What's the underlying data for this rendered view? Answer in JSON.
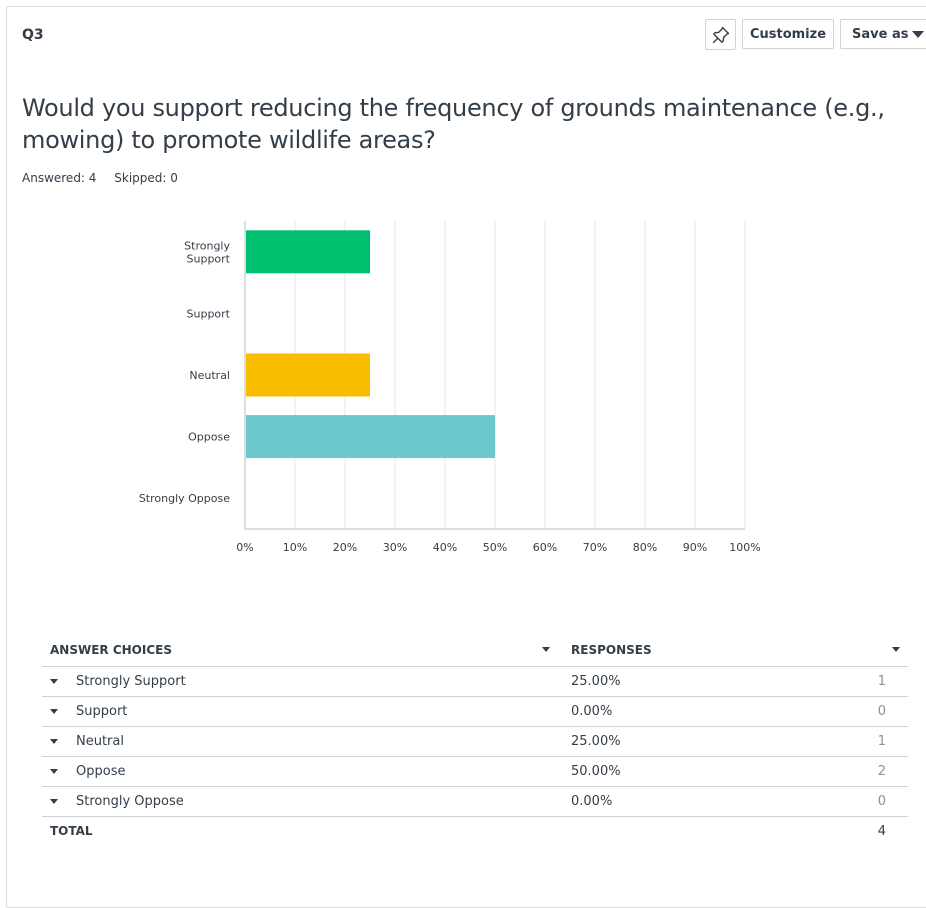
{
  "question": {
    "number": "Q3",
    "title": "Would you support reducing the frequency of grounds maintenance (e.g., mowing) to promote wildlife areas?",
    "answered_label": "Answered: 4",
    "skipped_label": "Skipped: 0"
  },
  "toolbar": {
    "pin_icon": "pin-icon",
    "customize_label": "Customize",
    "save_as_label": "Save as"
  },
  "colors": {
    "strongly_support": "#00bf6f",
    "neutral": "#f9be00",
    "oppose": "#6bc8cd",
    "grid": "#e6e8e9",
    "axis": "#b8bcbf"
  },
  "chart_data": {
    "type": "bar",
    "orientation": "horizontal",
    "categories": [
      "Strongly Support",
      "Support",
      "Neutral",
      "Oppose",
      "Strongly Oppose"
    ],
    "category_labels": [
      [
        "Strongly",
        "Support"
      ],
      [
        "Support"
      ],
      [
        "Neutral"
      ],
      [
        "Oppose"
      ],
      [
        "Strongly Oppose"
      ]
    ],
    "values": [
      25,
      0,
      25,
      50,
      0
    ],
    "bar_colors": [
      "#00bf6f",
      "#00bf6f",
      "#f9be00",
      "#6bc8cd",
      "#6bc8cd"
    ],
    "xlim": [
      0,
      100
    ],
    "xticks": [
      "0%",
      "10%",
      "20%",
      "30%",
      "40%",
      "50%",
      "60%",
      "70%",
      "80%",
      "90%",
      "100%"
    ],
    "grid": true
  },
  "table": {
    "col_choices": "ANSWER CHOICES",
    "col_responses": "RESPONSES",
    "rows": [
      {
        "choice": "Strongly Support",
        "percent": "25.00%",
        "count": "1"
      },
      {
        "choice": "Support",
        "percent": "0.00%",
        "count": "0"
      },
      {
        "choice": "Neutral",
        "percent": "25.00%",
        "count": "1"
      },
      {
        "choice": "Oppose",
        "percent": "50.00%",
        "count": "2"
      },
      {
        "choice": "Strongly Oppose",
        "percent": "0.00%",
        "count": "0"
      }
    ],
    "total_label": "TOTAL",
    "total_count": "4"
  }
}
